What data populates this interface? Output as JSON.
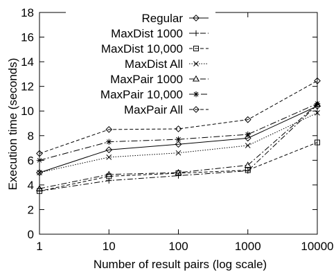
{
  "chart_data": {
    "type": "line",
    "xscale": "log",
    "x": [
      1,
      10,
      100,
      1000,
      10000
    ],
    "xticks": [
      "1",
      "10",
      "100",
      "1000",
      "10000"
    ],
    "yticks": [
      "0",
      "2",
      "4",
      "6",
      "8",
      "10",
      "12",
      "14",
      "16",
      "18"
    ],
    "xlabel": "Number of result pairs (log scale)",
    "ylabel": "Execution time (seconds)",
    "xlim": [
      1,
      10000
    ],
    "ylim": [
      0,
      18
    ],
    "grid": false,
    "legend_position": "top-left",
    "series": [
      {
        "name": "Regular",
        "values": [
          5.0,
          6.85,
          7.3,
          7.8,
          10.4
        ],
        "marker": "diamond",
        "dash": "solid"
      },
      {
        "name": "MaxDist 1000",
        "values": [
          3.5,
          4.35,
          4.75,
          5.15,
          10.5
        ],
        "marker": "plus",
        "dash": "dashdot"
      },
      {
        "name": "MaxDist 10,000",
        "values": [
          3.5,
          4.7,
          4.95,
          5.2,
          7.45
        ],
        "marker": "square",
        "dash": "dashed"
      },
      {
        "name": "MaxDist All",
        "values": [
          5.0,
          6.25,
          6.6,
          7.2,
          9.85
        ],
        "marker": "cross",
        "dash": "dotted"
      },
      {
        "name": "MaxPair 1000",
        "values": [
          3.7,
          4.85,
          5.0,
          5.6,
          10.55
        ],
        "marker": "triangle",
        "dash": "dashdot"
      },
      {
        "name": "MaxPair 10,000",
        "values": [
          6.0,
          7.5,
          7.7,
          8.1,
          10.6
        ],
        "marker": "star",
        "dash": "longdash"
      },
      {
        "name": "MaxPair All",
        "values": [
          6.55,
          8.5,
          8.55,
          9.3,
          12.45
        ],
        "marker": "diamond",
        "dash": "dashed"
      }
    ]
  }
}
